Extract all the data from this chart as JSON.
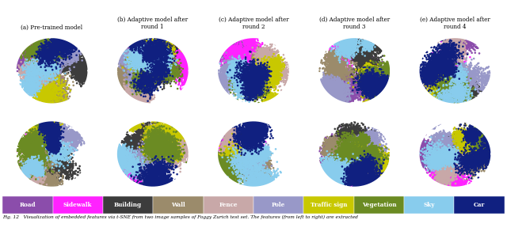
{
  "titles": [
    "(a) Pre-trained model",
    "(b) Adaptive model after\nround 1",
    "(c) Adaptive model after\nround 2",
    "(d) Adaptive model after\nround 3",
    "(e) Adaptive model after\nround 4"
  ],
  "legend_labels": [
    "Road",
    "Sidewalk",
    "Building",
    "Wall",
    "Fence",
    "Pole",
    "Traffic sign",
    "Vegetation",
    "Sky",
    "Car"
  ],
  "legend_colors": [
    "#8B4DAB",
    "#FF22FF",
    "#3C3C3C",
    "#9B8B6B",
    "#C8A8A8",
    "#9898C8",
    "#C8C800",
    "#6B8B23",
    "#88CCED",
    "#102080"
  ],
  "caption": "Fig. 12   Visualization of embedded features via t-SNE from two image samples of Foggy Zurich test set. The features (from left to right) are extracted",
  "fig_width": 6.4,
  "fig_height": 3.02,
  "dpi": 100,
  "n_cols": 5,
  "n_rows": 2,
  "background_color": "#FFFFFF",
  "point_size": 3.5,
  "n_points_per_cluster": 300,
  "n_clusters_per_class_min": 4,
  "n_clusters_per_class_max": 9
}
